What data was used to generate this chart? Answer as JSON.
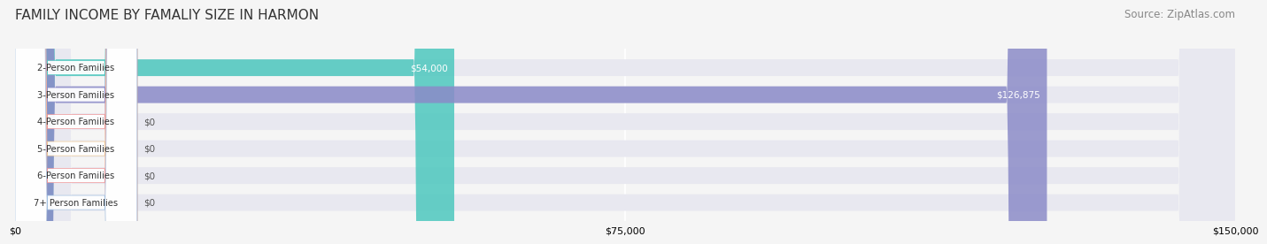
{
  "title": "FAMILY INCOME BY FAMALIY SIZE IN HARMON",
  "source": "Source: ZipAtlas.com",
  "categories": [
    "2-Person Families",
    "3-Person Families",
    "4-Person Families",
    "5-Person Families",
    "6-Person Families",
    "7+ Person Families"
  ],
  "values": [
    54000,
    126875,
    0,
    0,
    0,
    0
  ],
  "bar_colors": [
    "#4dc8be",
    "#8b8bc8",
    "#f09090",
    "#f0c890",
    "#f09090",
    "#a0c0e0"
  ],
  "value_labels": [
    "$54,000",
    "$126,875",
    "$0",
    "$0",
    "$0",
    "$0"
  ],
  "xlim": [
    0,
    150000
  ],
  "xticks": [
    0,
    75000,
    150000
  ],
  "xtick_labels": [
    "$0",
    "$75,000",
    "$150,000"
  ],
  "bg_color": "#f5f5f5",
  "bar_bg_color": "#e8e8f0",
  "title_fontsize": 11,
  "source_fontsize": 8.5
}
